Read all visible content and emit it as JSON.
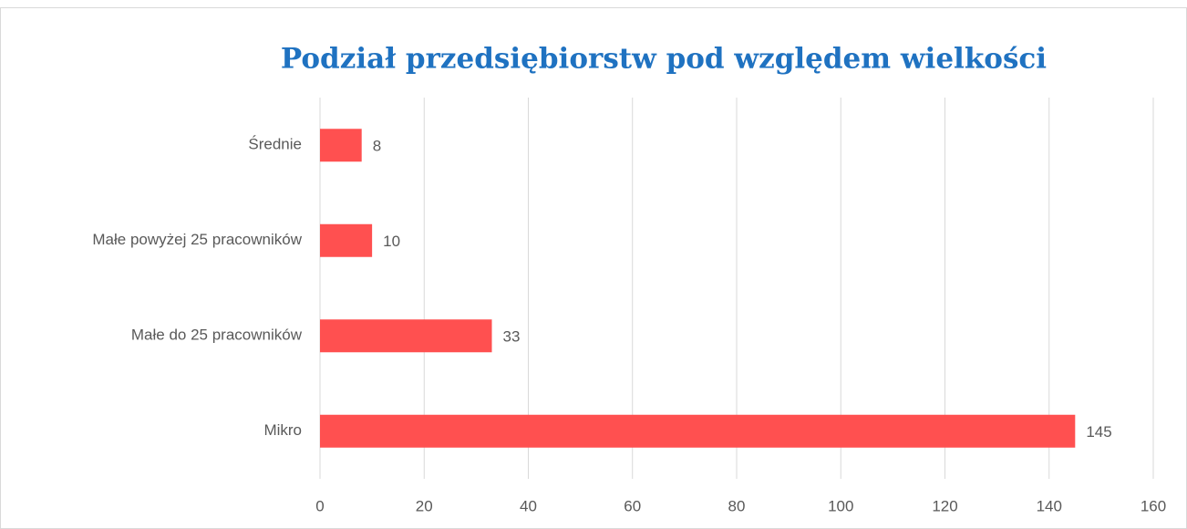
{
  "chart_data": {
    "type": "bar",
    "orientation": "horizontal",
    "title": "Podział przedsiębiorstw pod względem wielkości",
    "categories": [
      "Średnie",
      "Małe powyżej 25 pracowników",
      "Małe do 25 pracowników",
      "Mikro"
    ],
    "values": [
      8,
      10,
      33,
      145
    ],
    "color": "#ff5050",
    "xlim": [
      0,
      160
    ],
    "xticks": [
      0,
      20,
      40,
      60,
      80,
      100,
      120,
      140,
      160
    ],
    "grid": true
  }
}
